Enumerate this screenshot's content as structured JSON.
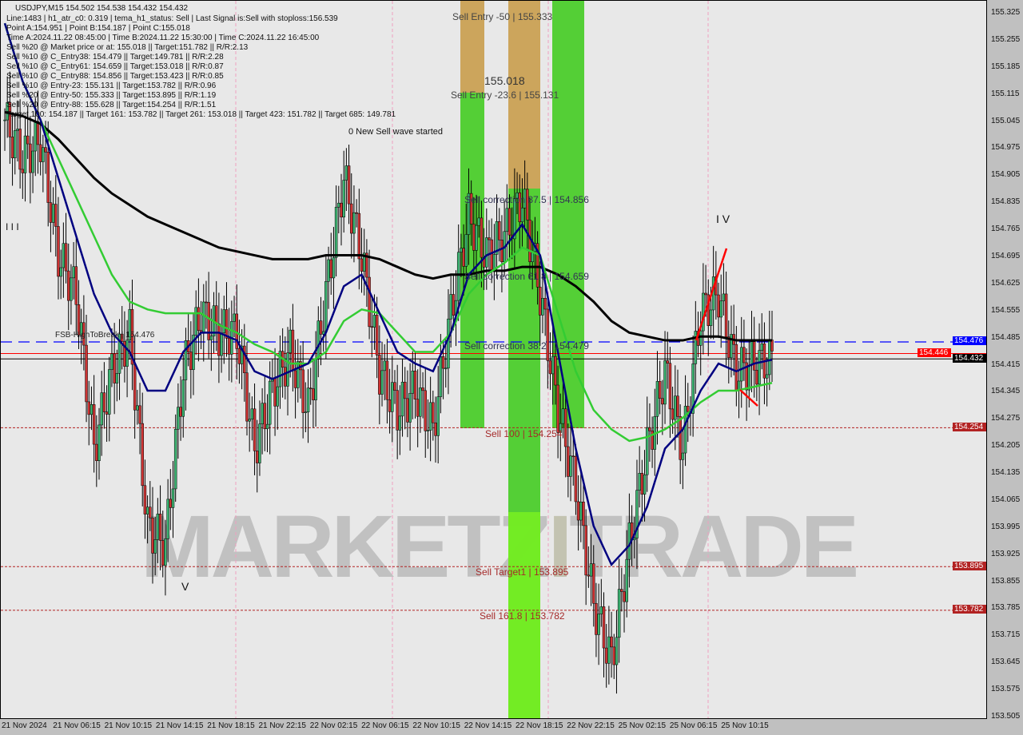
{
  "header": {
    "symbol_line": "USDJPY,M15  154.502 154.538 154.432 154.432",
    "lines": [
      "Line:1483 | h1_atr_c0: 0.319 | tema_h1_status: Sell | Last Signal is:Sell with stoploss:156.539",
      "Point A:154.951 | Point B:154.187 | Point C:155.018",
      "Time A:2024.11.22 08:45:00 | Time B:2024.11.22 15:30:00 | Time C:2024.11.22 16:45:00",
      "Sell %20 @ Market price or at: 155.018 || Target:151.782 || R/R:2.13",
      "Sell %10 @ C_Entry38: 154.479 || Target:149.781 || R/R:2.28",
      "Sell %10 @ C_Entry61: 154.659 || Target:153.018 || R/R:0.87",
      "Sell %10 @ C_Entry88: 154.856 || Target:153.423 || R/R:0.85",
      "Sell %10 @ Entry-23: 155.131 || Target:153.782 || R/R:0.96",
      "Sell %20 @ Entry-50: 155.333 || Target:153.895 || R/R:1.19",
      "Sell %20 @ Entry-88: 155.628 || Target:154.254 || R/R:1.51",
      "Target 100: 154.187 || Target 161: 153.782 || Target 261: 153.018 || Target 423: 151.782 || Target 685: 149.781"
    ]
  },
  "annotations": {
    "sell_entry_50": "Sell Entry -50 | 155.333",
    "sell_entry_23": "Sell Entry -23.6 | 155.131",
    "point_c": "155.018",
    "new_wave": "0 New Sell wave started",
    "corr_875": "Sell correction 87.5 | 154.856",
    "corr_618": "Sell correction 61.8 | 154.659",
    "corr_382": "Sell correction 38.2 | 154.479",
    "sell_100": "Sell 100 | 154.254",
    "target1": "Sell Target1 | 153.895",
    "sell_1618": "Sell 161.8 | 153.782",
    "fsb": "FSB-HighToBreak | 154.476",
    "wave_iii": "I I I",
    "wave_iv": "I V",
    "wave_v": "V"
  },
  "watermark": "MARKETZITRADE",
  "chart_data": {
    "type": "candlestick",
    "symbol": "USDJPY",
    "timeframe": "M15",
    "ylim": [
      153.505,
      155.355
    ],
    "y_ticks": [
      "155.325",
      "155.255",
      "155.185",
      "155.115",
      "155.045",
      "154.975",
      "154.905",
      "154.835",
      "154.765",
      "154.695",
      "154.625",
      "154.555",
      "154.485",
      "154.415",
      "154.345",
      "154.275",
      "154.205",
      "154.135",
      "154.065",
      "153.995",
      "153.925",
      "153.855",
      "153.785",
      "153.715",
      "153.645",
      "153.575",
      "153.505"
    ],
    "x_ticks": [
      "21 Nov 2024",
      "21 Nov 06:15",
      "21 Nov 10:15",
      "21 Nov 14:15",
      "21 Nov 18:15",
      "21 Nov 22:15",
      "22 Nov 02:15",
      "22 Nov 06:15",
      "22 Nov 10:15",
      "22 Nov 14:15",
      "22 Nov 18:15",
      "22 Nov 22:15",
      "25 Nov 02:15",
      "25 Nov 06:15",
      "25 Nov 10:15"
    ],
    "close": [
      155.05,
      154.95,
      155.0,
      154.7,
      154.6,
      154.2,
      154.4,
      154.5,
      154.0,
      153.95,
      154.4,
      154.55,
      154.5,
      154.5,
      154.2,
      154.35,
      154.45,
      154.3,
      154.6,
      154.9,
      154.7,
      154.4,
      154.3,
      154.35,
      154.25,
      154.55,
      154.8,
      154.7,
      154.75,
      154.85,
      154.6,
      154.3,
      154.1,
      153.8,
      153.65,
      153.95,
      154.2,
      154.4,
      154.2,
      154.55,
      154.6,
      154.4,
      154.42,
      154.43
    ],
    "ma_black": [
      155.07,
      155.06,
      155.04,
      155.0,
      154.95,
      154.9,
      154.86,
      154.83,
      154.8,
      154.78,
      154.76,
      154.74,
      154.72,
      154.71,
      154.7,
      154.69,
      154.69,
      154.69,
      154.7,
      154.7,
      154.7,
      154.69,
      154.67,
      154.65,
      154.64,
      154.65,
      154.65,
      154.66,
      154.66,
      154.67,
      154.67,
      154.65,
      154.62,
      154.58,
      154.53,
      154.5,
      154.49,
      154.48,
      154.48,
      154.49,
      154.49,
      154.48,
      154.48,
      154.48
    ],
    "ma_green": [
      155.3,
      155.15,
      155.05,
      154.95,
      154.85,
      154.75,
      154.65,
      154.58,
      154.56,
      154.55,
      154.55,
      154.55,
      154.52,
      154.5,
      154.47,
      154.45,
      154.42,
      154.42,
      154.45,
      154.53,
      154.56,
      154.55,
      154.5,
      154.45,
      154.45,
      154.5,
      154.6,
      154.65,
      154.68,
      154.72,
      154.7,
      154.55,
      154.4,
      154.3,
      154.25,
      154.22,
      154.23,
      154.25,
      154.28,
      154.32,
      154.35,
      154.35,
      154.36,
      154.37
    ],
    "ma_navy": [
      155.3,
      155.15,
      155.05,
      154.9,
      154.75,
      154.6,
      154.5,
      154.45,
      154.35,
      154.35,
      154.45,
      154.5,
      154.5,
      154.48,
      154.4,
      154.38,
      154.4,
      154.42,
      154.5,
      154.62,
      154.65,
      154.55,
      154.45,
      154.42,
      154.4,
      154.5,
      154.65,
      154.7,
      154.72,
      154.78,
      154.7,
      154.45,
      154.2,
      154.0,
      153.9,
      153.95,
      154.05,
      154.2,
      154.25,
      154.35,
      154.42,
      154.4,
      154.42,
      154.43
    ],
    "levels": [
      {
        "price": 154.476,
        "label": "154.476",
        "color": "#0000ff",
        "style": "dashed"
      },
      {
        "price": 154.446,
        "label": "154.446",
        "color": "#ff0000",
        "style": "solid"
      },
      {
        "price": 154.432,
        "label": "154.432",
        "color": "#000000",
        "style": "solid"
      },
      {
        "price": 154.254,
        "label": "154.254",
        "color": "#b22222",
        "style": "dotted"
      },
      {
        "price": 153.895,
        "label": "153.895",
        "color": "#b22222",
        "style": "dotted"
      },
      {
        "price": 153.782,
        "label": "153.782",
        "color": "#b22222",
        "style": "dotted"
      }
    ],
    "colors": {
      "bull": "#3cb371",
      "bear": "#cd3333",
      "zone_green": "#44cc22",
      "zone_orange": "#d9a060",
      "ma_black": "#000000",
      "ma_green": "#33cc33",
      "ma_navy": "#000080"
    }
  }
}
